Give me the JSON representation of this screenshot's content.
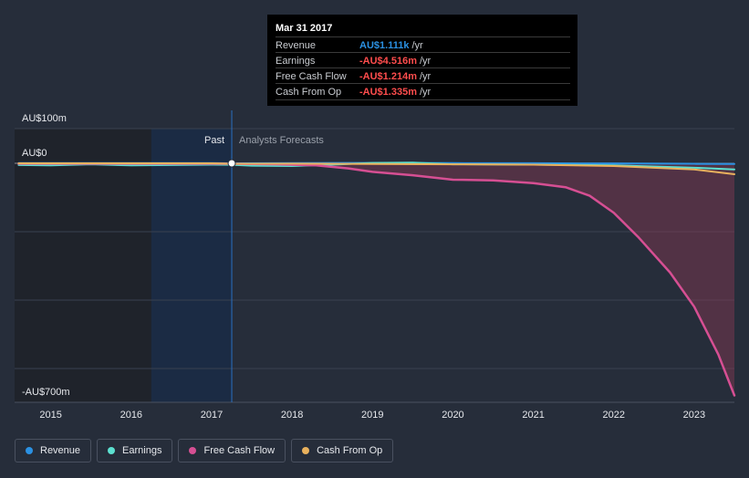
{
  "chart_data": {
    "type": "line",
    "x_ticks": [
      "2015",
      "2016",
      "2017",
      "2018",
      "2019",
      "2020",
      "2021",
      "2022",
      "2023"
    ],
    "x_range": [
      2014.55,
      2023.5
    ],
    "y_range": [
      -700,
      100
    ],
    "y_labels": {
      "top": "AU$100m",
      "zero": "AU$0",
      "bottom": "-AU$700m"
    },
    "past_divider_x": 2017.25,
    "highlight_start_x": 2016.25,
    "regions": {
      "past": "Past",
      "forecast": "Analysts Forecasts"
    },
    "series": [
      {
        "name": "Revenue",
        "color": "#2b91e3",
        "x": [
          2014.6,
          2015,
          2016,
          2017,
          2017.25,
          2018,
          2019,
          2020,
          2021,
          2022,
          2023,
          2023.5
        ],
        "y": [
          0.5,
          0.5,
          0.6,
          0.8,
          0.0011,
          0.5,
          1,
          0.5,
          0.2,
          -0.5,
          -1.5,
          -2
        ]
      },
      {
        "name": "Earnings",
        "color": "#5ce0d0",
        "x": [
          2014.6,
          2015,
          2015.5,
          2016,
          2016.5,
          2017,
          2017.25,
          2017.5,
          2018,
          2018.5,
          2019,
          2019.5,
          2020,
          2021,
          2022,
          2023,
          2023.5
        ],
        "y": [
          -5,
          -6,
          -3,
          -6,
          -5,
          -4,
          -4.5,
          -7,
          -8,
          -4,
          1,
          2,
          -3,
          -4,
          -6,
          -13,
          -18
        ]
      },
      {
        "name": "Free Cash Flow",
        "color": "#d64f93",
        "x": [
          2014.6,
          2015,
          2016,
          2017,
          2017.25,
          2017.8,
          2018.3,
          2018.7,
          2019,
          2019.5,
          2020,
          2020.5,
          2021,
          2021.4,
          2021.7,
          2022,
          2022.3,
          2022.7,
          2023,
          2023.3,
          2023.5
        ],
        "y": [
          -1,
          -1,
          -1,
          -1,
          -1.2,
          -3,
          -6,
          -15,
          -25,
          -35,
          -48,
          -50,
          -58,
          -70,
          -95,
          -145,
          -215,
          -320,
          -420,
          -560,
          -680
        ]
      },
      {
        "name": "Cash From Op",
        "color": "#e9b15d",
        "x": [
          2014.6,
          2015,
          2016,
          2017,
          2017.25,
          2018,
          2019,
          2020,
          2021,
          2022,
          2023,
          2023.5
        ],
        "y": [
          0,
          0,
          0,
          0,
          -1.3,
          -1,
          -2,
          -3,
          -4,
          -8,
          -18,
          -32
        ]
      }
    ]
  },
  "tooltip": {
    "date": "Mar 31 2017",
    "rows": [
      {
        "name": "Revenue",
        "value": "AU$1.111k",
        "unit": "/yr",
        "color": "#2b91e3"
      },
      {
        "name": "Earnings",
        "value": "-AU$4.516m",
        "unit": "/yr",
        "color": "#ff4d4d"
      },
      {
        "name": "Free Cash Flow",
        "value": "-AU$1.214m",
        "unit": "/yr",
        "color": "#ff4d4d"
      },
      {
        "name": "Cash From Op",
        "value": "-AU$1.335m",
        "unit": "/yr",
        "color": "#ff4d4d"
      }
    ]
  },
  "legend": [
    {
      "label": "Revenue",
      "color": "#2b91e3"
    },
    {
      "label": "Earnings",
      "color": "#5ce0d0"
    },
    {
      "label": "Free Cash Flow",
      "color": "#d64f93"
    },
    {
      "label": "Cash From Op",
      "color": "#e9b15d"
    }
  ]
}
